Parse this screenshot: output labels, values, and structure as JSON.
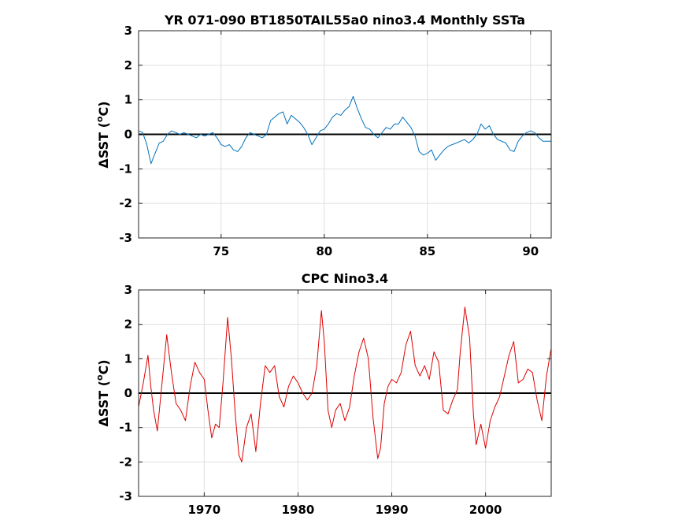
{
  "chart_data": [
    {
      "type": "line",
      "title": "YR 071-090 BT1850TAIL55a0 nino3.4 Monthly SSTa",
      "xlabel": "",
      "ylabel_prefix": "ΔSST (",
      "ylabel_sup": "o",
      "ylabel_suffix": "C)",
      "xlim": [
        71,
        91
      ],
      "ylim": [
        -3,
        3
      ],
      "xticks": [
        75,
        80,
        85,
        90
      ],
      "yticks": [
        -3,
        -2,
        -1,
        0,
        1,
        2,
        3
      ],
      "grid": true,
      "zero_line": true,
      "color": "#0072bd",
      "series": [
        {
          "x": [
            71.0,
            71.2,
            71.4,
            71.6,
            71.8,
            72.0,
            72.2,
            72.4,
            72.6,
            72.8,
            73.0,
            73.2,
            73.4,
            73.6,
            73.8,
            74.0,
            74.2,
            74.4,
            74.6,
            74.8,
            75.0,
            75.2,
            75.4,
            75.6,
            75.8,
            76.0,
            76.2,
            76.4,
            76.6,
            76.8,
            77.0,
            77.2,
            77.4,
            77.6,
            77.8,
            78.0,
            78.2,
            78.4,
            78.6,
            78.8,
            79.0,
            79.2,
            79.4,
            79.6,
            79.8,
            80.0,
            80.2,
            80.4,
            80.6,
            80.8,
            81.0,
            81.2,
            81.4,
            81.6,
            81.8,
            82.0,
            82.2,
            82.4,
            82.6,
            82.8,
            83.0,
            83.2,
            83.4,
            83.6,
            83.8,
            84.0,
            84.2,
            84.4,
            84.6,
            84.8,
            85.0,
            85.2,
            85.4,
            85.6,
            85.8,
            86.0,
            86.2,
            86.4,
            86.6,
            86.8,
            87.0,
            87.2,
            87.4,
            87.6,
            87.8,
            88.0,
            88.2,
            88.4,
            88.6,
            88.8,
            89.0,
            89.2,
            89.4,
            89.6,
            89.8,
            90.0,
            90.2,
            90.4,
            90.6,
            90.8,
            91.0
          ],
          "values": [
            0.1,
            0.05,
            -0.3,
            -0.85,
            -0.55,
            -0.25,
            -0.2,
            0.0,
            0.1,
            0.05,
            0.0,
            0.05,
            0.0,
            -0.05,
            -0.1,
            0.0,
            -0.05,
            0.0,
            0.05,
            -0.1,
            -0.3,
            -0.35,
            -0.3,
            -0.45,
            -0.5,
            -0.35,
            -0.1,
            0.05,
            0.0,
            -0.05,
            -0.1,
            0.0,
            0.4,
            0.5,
            0.6,
            0.65,
            0.3,
            0.55,
            0.45,
            0.35,
            0.2,
            0.0,
            -0.3,
            -0.1,
            0.1,
            0.15,
            0.3,
            0.5,
            0.6,
            0.55,
            0.7,
            0.8,
            1.1,
            0.75,
            0.45,
            0.2,
            0.15,
            0.0,
            -0.1,
            0.05,
            0.2,
            0.15,
            0.3,
            0.3,
            0.5,
            0.35,
            0.2,
            -0.05,
            -0.5,
            -0.6,
            -0.55,
            -0.45,
            -0.75,
            -0.6,
            -0.45,
            -0.35,
            -0.3,
            -0.25,
            -0.2,
            -0.15,
            -0.25,
            -0.15,
            0.0,
            0.3,
            0.15,
            0.25,
            0.0,
            -0.15,
            -0.2,
            -0.25,
            -0.45,
            -0.5,
            -0.2,
            -0.05,
            0.05,
            0.1,
            0.05,
            -0.1,
            -0.2,
            -0.2,
            -0.2
          ]
        }
      ]
    },
    {
      "type": "line",
      "title": "CPC Nino3.4",
      "xlabel": "",
      "ylabel_prefix": "ΔSST (",
      "ylabel_sup": "o",
      "ylabel_suffix": "C)",
      "xlim": [
        1963,
        2007
      ],
      "ylim": [
        -3,
        3
      ],
      "xticks": [
        1970,
        1980,
        1990,
        2000
      ],
      "yticks": [
        -3,
        -2,
        -1,
        0,
        1,
        2,
        3
      ],
      "grid": true,
      "zero_line": true,
      "color": "#dd0000",
      "series": [
        {
          "x": [
            1963.0,
            1963.5,
            1964.0,
            1964.3,
            1964.6,
            1965.0,
            1965.5,
            1966.0,
            1966.5,
            1967.0,
            1967.5,
            1968.0,
            1968.5,
            1969.0,
            1969.5,
            1970.0,
            1970.4,
            1970.8,
            1971.2,
            1971.6,
            1972.0,
            1972.5,
            1972.9,
            1973.3,
            1973.7,
            1974.0,
            1974.5,
            1975.0,
            1975.5,
            1976.0,
            1976.5,
            1977.0,
            1977.5,
            1978.0,
            1978.5,
            1979.0,
            1979.5,
            1980.0,
            1980.5,
            1981.0,
            1981.5,
            1982.0,
            1982.5,
            1982.8,
            1983.2,
            1983.6,
            1984.0,
            1984.5,
            1985.0,
            1985.5,
            1986.0,
            1986.5,
            1987.0,
            1987.5,
            1988.0,
            1988.5,
            1988.8,
            1989.2,
            1989.6,
            1990.0,
            1990.5,
            1991.0,
            1991.5,
            1992.0,
            1992.5,
            1993.0,
            1993.5,
            1994.0,
            1994.5,
            1995.0,
            1995.5,
            1996.0,
            1996.5,
            1997.0,
            1997.3,
            1997.8,
            1998.3,
            1998.7,
            1999.0,
            1999.5,
            2000.0,
            2000.5,
            2001.0,
            2001.5,
            2002.0,
            2002.5,
            2003.0,
            2003.5,
            2004.0,
            2004.5,
            2005.0,
            2005.5,
            2006.0,
            2006.5,
            2007.0
          ],
          "values": [
            -0.4,
            0.3,
            1.1,
            0.2,
            -0.5,
            -1.1,
            0.3,
            1.7,
            0.6,
            -0.3,
            -0.5,
            -0.8,
            0.2,
            0.9,
            0.6,
            0.4,
            -0.5,
            -1.3,
            -0.9,
            -1.0,
            0.3,
            2.2,
            1.0,
            -0.6,
            -1.8,
            -2.0,
            -1.0,
            -0.6,
            -1.7,
            -0.3,
            0.8,
            0.6,
            0.8,
            -0.1,
            -0.4,
            0.2,
            0.5,
            0.3,
            0.0,
            -0.2,
            0.0,
            0.8,
            2.4,
            1.5,
            -0.5,
            -1.0,
            -0.5,
            -0.3,
            -0.8,
            -0.4,
            0.5,
            1.2,
            1.6,
            1.0,
            -0.7,
            -1.9,
            -1.6,
            -0.3,
            0.2,
            0.4,
            0.3,
            0.6,
            1.4,
            1.8,
            0.8,
            0.5,
            0.8,
            0.4,
            1.2,
            0.9,
            -0.5,
            -0.6,
            -0.2,
            0.1,
            1.2,
            2.5,
            1.6,
            -0.6,
            -1.5,
            -0.9,
            -1.6,
            -0.8,
            -0.4,
            -0.1,
            0.5,
            1.1,
            1.5,
            0.3,
            0.4,
            0.7,
            0.6,
            -0.2,
            -0.8,
            0.5,
            1.3
          ]
        }
      ]
    }
  ]
}
